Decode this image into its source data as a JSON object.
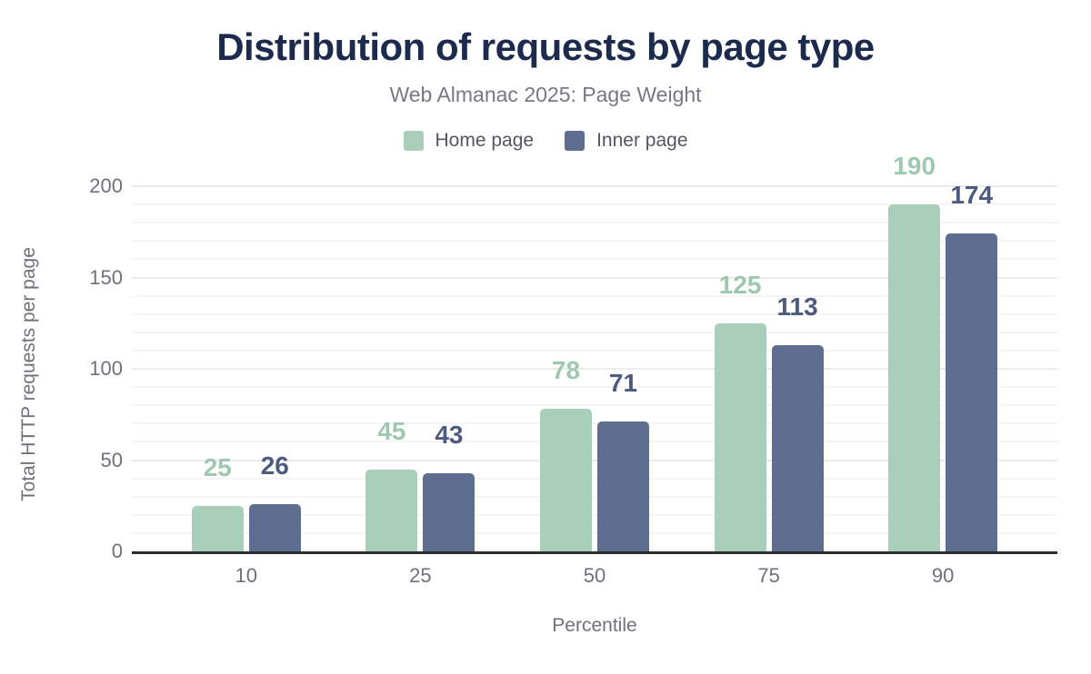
{
  "chart_data": {
    "type": "bar",
    "title": "Distribution of requests by page type",
    "subtitle": "Web Almanac 2025: Page Weight",
    "xlabel": "Percentile",
    "ylabel": "Total HTTP requests per page",
    "categories": [
      "10",
      "25",
      "50",
      "75",
      "90"
    ],
    "series": [
      {
        "name": "Home page",
        "color": "#a9cfba",
        "label_color": "#9fc8b0",
        "values": [
          25,
          45,
          78,
          125,
          190
        ]
      },
      {
        "name": "Inner page",
        "color": "#5e6e91",
        "label_color": "#4c5b7f",
        "values": [
          26,
          43,
          71,
          113,
          174
        ]
      }
    ],
    "ylim": [
      0,
      200
    ],
    "yticks": [
      0,
      50,
      100,
      150,
      200
    ],
    "grid_minor_step": 10,
    "grid_major_step": 50,
    "grid": "on",
    "legend_position": "top",
    "colors": {
      "title": "#1c2b4d",
      "subtitle": "#757a82",
      "legend_text": "#53585f",
      "axis_text": "#6d727a",
      "baseline": "#2b2d30",
      "grid_major": "#ebebeb",
      "grid_minor": "#f5f5f5",
      "background": "#ffffff"
    }
  }
}
